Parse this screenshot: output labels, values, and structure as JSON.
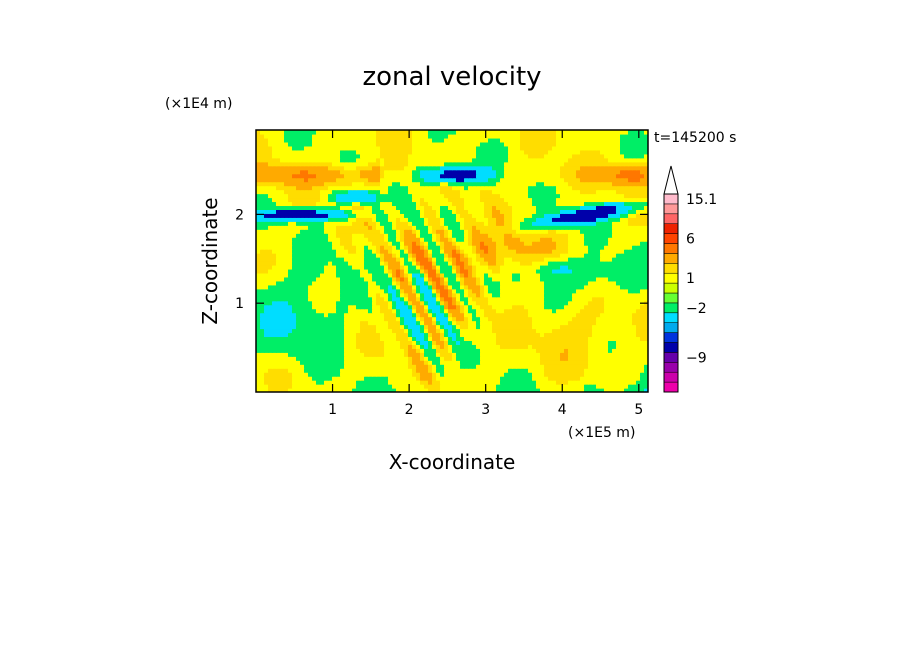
{
  "chart_data": {
    "type": "heatmap",
    "title": "zonal velocity",
    "xlabel": "X-coordinate",
    "ylabel": "Z-coordinate",
    "x_scale_label": "(×1E5 m)",
    "y_scale_label": "(×1E4 m)",
    "time_label": "t=145200 s",
    "xlim": [
      0,
      5.12
    ],
    "ylim": [
      0,
      2.95
    ],
    "x_ticks": [
      {
        "v": 1,
        "label": "1"
      },
      {
        "v": 2,
        "label": "2"
      },
      {
        "v": 3,
        "label": "3"
      },
      {
        "v": 4,
        "label": "4"
      },
      {
        "v": 5,
        "label": "5"
      }
    ],
    "y_ticks": [
      {
        "v": 1,
        "label": "1"
      },
      {
        "v": 2,
        "label": "2"
      }
    ],
    "colorbar": {
      "colors": [
        "#ee00aa",
        "#cc00aa",
        "#9900aa",
        "#6600aa",
        "#0000aa",
        "#0033dd",
        "#00aaee",
        "#00ddff",
        "#00ee66",
        "#66ff33",
        "#ccff00",
        "#ffff00",
        "#ffdd00",
        "#ffaa00",
        "#ff7700",
        "#ff4400",
        "#ee2200",
        "#ff6666",
        "#ff9999",
        "#ffbbcc"
      ],
      "labels": [
        {
          "index": 19,
          "label": "15.1"
        },
        {
          "index": 15,
          "label": "6"
        },
        {
          "index": 11,
          "label": "1"
        },
        {
          "index": 8,
          "label": "−2"
        },
        {
          "index": 3,
          "label": "−9"
        }
      ]
    },
    "field_colors": {
      "strong_negative": "#0000aa",
      "negative": "#00ddff",
      "weak_negative": "#00ee66",
      "near_zero": "#ffff00",
      "weak_positive": "#ffdd00",
      "positive": "#ffaa00",
      "strong_positive": "#ff7700"
    }
  }
}
